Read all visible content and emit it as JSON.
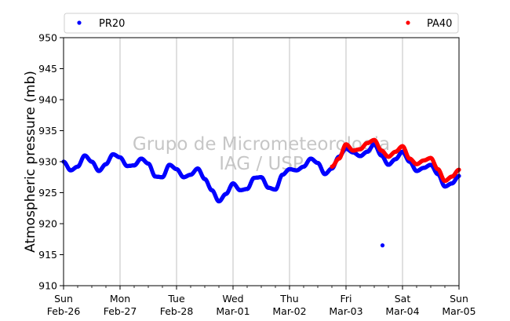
{
  "chart_data": {
    "type": "scatter",
    "ylabel": "Atmospheric pressure (mb)",
    "xlabel": "",
    "ylim": [
      910,
      950
    ],
    "yticks": [
      910,
      915,
      920,
      925,
      930,
      935,
      940,
      945,
      950
    ],
    "x_range_days": [
      "2023-02-26",
      "2023-03-05"
    ],
    "xticks": [
      {
        "date": "2023-02-26",
        "line1": "Sun",
        "line2": "Feb-26"
      },
      {
        "date": "2023-02-27",
        "line1": "Mon",
        "line2": "Feb-27"
      },
      {
        "date": "2023-02-28",
        "line1": "Tue",
        "line2": "Feb-28"
      },
      {
        "date": "2023-03-01",
        "line1": "Wed",
        "line2": "Mar-01"
      },
      {
        "date": "2023-03-02",
        "line1": "Thu",
        "line2": "Mar-02"
      },
      {
        "date": "2023-03-03",
        "line1": "Fri",
        "line2": "Mar-03"
      },
      {
        "date": "2023-03-04",
        "line1": "Sat",
        "line2": "Mar-04"
      },
      {
        "date": "2023-03-05",
        "line1": "Sun",
        "line2": "Mar-05"
      }
    ],
    "grid": "vertical",
    "legend_placement": "top",
    "watermark": [
      "Grupo de Micrometeorologia",
      "IAG / USP"
    ],
    "series": [
      {
        "name": "PR20",
        "color": "#0000ff",
        "points": [
          [
            "2023-02-26 00:00",
            930.0
          ],
          [
            "2023-02-26 03:00",
            928.6
          ],
          [
            "2023-02-26 06:00",
            929.2
          ],
          [
            "2023-02-26 09:00",
            931.0
          ],
          [
            "2023-02-26 12:00",
            930.0
          ],
          [
            "2023-02-26 15:00",
            928.5
          ],
          [
            "2023-02-26 18:00",
            929.6
          ],
          [
            "2023-02-26 21:00",
            931.2
          ],
          [
            "2023-02-27 00:00",
            930.7
          ],
          [
            "2023-02-27 03:00",
            929.3
          ],
          [
            "2023-02-27 06:00",
            929.4
          ],
          [
            "2023-02-27 09:00",
            930.5
          ],
          [
            "2023-02-27 12:00",
            929.7
          ],
          [
            "2023-02-27 15:00",
            927.6
          ],
          [
            "2023-02-27 18:00",
            927.5
          ],
          [
            "2023-02-27 21:00",
            929.5
          ],
          [
            "2023-02-28 00:00",
            928.8
          ],
          [
            "2023-02-28 03:00",
            927.5
          ],
          [
            "2023-02-28 06:00",
            927.9
          ],
          [
            "2023-02-28 09:00",
            928.9
          ],
          [
            "2023-02-28 12:00",
            927.2
          ],
          [
            "2023-02-28 15:00",
            925.4
          ],
          [
            "2023-02-28 18:00",
            923.6
          ],
          [
            "2023-02-28 21:00",
            924.8
          ],
          [
            "2023-03-01 00:00",
            926.5
          ],
          [
            "2023-03-01 03:00",
            925.4
          ],
          [
            "2023-03-01 06:00",
            925.6
          ],
          [
            "2023-03-01 09:00",
            927.4
          ],
          [
            "2023-03-01 12:00",
            927.5
          ],
          [
            "2023-03-01 15:00",
            925.8
          ],
          [
            "2023-03-01 18:00",
            925.5
          ],
          [
            "2023-03-01 21:00",
            927.9
          ],
          [
            "2023-03-02 00:00",
            928.8
          ],
          [
            "2023-03-02 03:00",
            928.6
          ],
          [
            "2023-03-02 06:00",
            929.2
          ],
          [
            "2023-03-02 09:00",
            930.5
          ],
          [
            "2023-03-02 12:00",
            929.8
          ],
          [
            "2023-03-02 15:00",
            928.0
          ],
          [
            "2023-03-02 18:00",
            928.9
          ],
          [
            "2023-03-02 21:00",
            930.8
          ],
          [
            "2023-03-03 00:00",
            932.1
          ],
          [
            "2023-03-03 03:00",
            931.5
          ],
          [
            "2023-03-03 06:00",
            930.9
          ],
          [
            "2023-03-03 09:00",
            931.6
          ],
          [
            "2023-03-03 12:00",
            932.8
          ],
          [
            "2023-03-03 15:00",
            931.0
          ],
          [
            "2023-03-03 18:00",
            929.5
          ],
          [
            "2023-03-03 21:00",
            930.4
          ],
          [
            "2023-03-04 00:00",
            931.6
          ],
          [
            "2023-03-04 03:00",
            930.0
          ],
          [
            "2023-03-04 06:00",
            928.5
          ],
          [
            "2023-03-04 09:00",
            929.0
          ],
          [
            "2023-03-04 12:00",
            929.5
          ],
          [
            "2023-03-04 15:00",
            928.0
          ],
          [
            "2023-03-04 18:00",
            926.0
          ],
          [
            "2023-03-04 21:00",
            926.5
          ],
          [
            "2023-03-05 00:00",
            927.7
          ],
          [
            "2023-03-03 15:30",
            916.5
          ]
        ]
      },
      {
        "name": "PA40",
        "color": "#ff0000",
        "points": [
          [
            "2023-03-02 18:00",
            929.2
          ],
          [
            "2023-03-02 21:00",
            930.5
          ],
          [
            "2023-03-03 00:00",
            932.8
          ],
          [
            "2023-03-03 03:00",
            931.8
          ],
          [
            "2023-03-03 06:00",
            932.0
          ],
          [
            "2023-03-03 09:00",
            933.0
          ],
          [
            "2023-03-03 12:00",
            933.5
          ],
          [
            "2023-03-03 15:00",
            931.8
          ],
          [
            "2023-03-03 18:00",
            930.8
          ],
          [
            "2023-03-03 21:00",
            931.6
          ],
          [
            "2023-03-04 00:00",
            932.5
          ],
          [
            "2023-03-04 03:00",
            930.5
          ],
          [
            "2023-03-04 06:00",
            929.6
          ],
          [
            "2023-03-04 09:00",
            930.2
          ],
          [
            "2023-03-04 12:00",
            930.6
          ],
          [
            "2023-03-04 15:00",
            928.8
          ],
          [
            "2023-03-04 18:00",
            926.9
          ],
          [
            "2023-03-04 21:00",
            927.6
          ],
          [
            "2023-03-05 00:00",
            928.7
          ]
        ]
      }
    ]
  }
}
